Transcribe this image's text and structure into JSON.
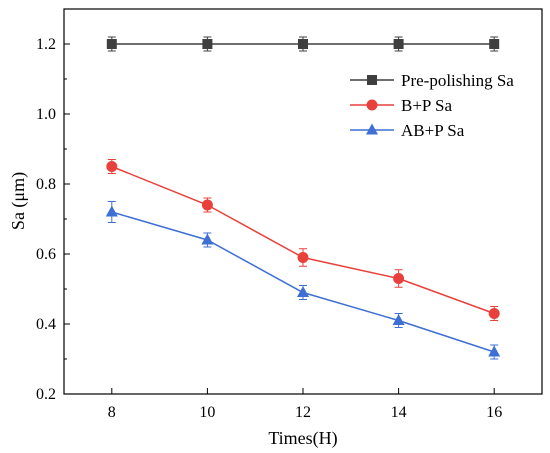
{
  "chart_data": {
    "type": "line",
    "title": "",
    "xlabel": "Times(H)",
    "ylabel": "Sa (μm)",
    "x": [
      8,
      10,
      12,
      14,
      16
    ],
    "xlim": [
      7,
      17
    ],
    "ylim": [
      0.2,
      1.3
    ],
    "xticks": [
      "8",
      "10",
      "12",
      "14",
      "16"
    ],
    "yticks": [
      "0.2",
      "0.4",
      "0.6",
      "0.8",
      "1.0",
      "1.2"
    ],
    "grid": false,
    "legend_position": "top-right",
    "series": [
      {
        "name": "Pre-polishing Sa",
        "marker": "square",
        "color": "#3f3f3f",
        "values": [
          1.2,
          1.2,
          1.2,
          1.2,
          1.2
        ],
        "errors": [
          0.02,
          0.02,
          0.02,
          0.02,
          0.02
        ]
      },
      {
        "name": "B+P Sa",
        "marker": "circle",
        "color": "#e8413b",
        "values": [
          0.85,
          0.74,
          0.59,
          0.53,
          0.43
        ],
        "errors": [
          0.02,
          0.02,
          0.025,
          0.025,
          0.02
        ]
      },
      {
        "name": "AB+P  Sa",
        "marker": "triangle",
        "color": "#3d6fd4",
        "values": [
          0.72,
          0.64,
          0.49,
          0.41,
          0.32
        ],
        "errors": [
          0.03,
          0.02,
          0.02,
          0.02,
          0.02
        ]
      }
    ]
  }
}
